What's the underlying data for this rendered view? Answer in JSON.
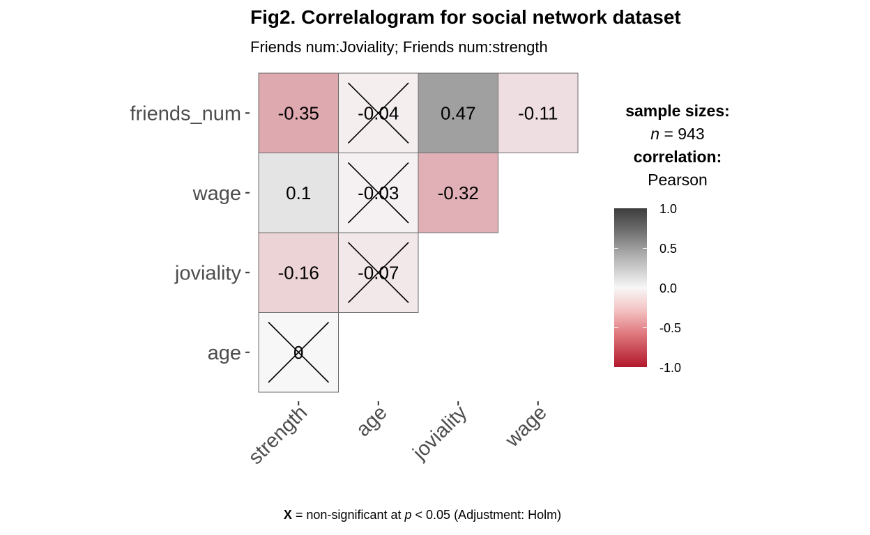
{
  "title": "Fig2. Correlalogram for social network dataset",
  "subtitle": "Friends num:Joviality; Friends num:strength",
  "caption": {
    "x_mark": "X",
    "text_before_p": " = non-significant at ",
    "p": "p",
    "text_after_p": " < 0.05 (Adjustment: Holm)"
  },
  "legend": {
    "sample_sizes_label": "sample sizes:",
    "n_symbol": "n",
    "n_value": " = 943",
    "correlation_label": "correlation:",
    "correlation_method": "Pearson",
    "ticks": [
      "1.0",
      "0.5",
      "0.0",
      "-0.5",
      "-1.0"
    ],
    "colors": {
      "high": "#3d3d3d",
      "mid": "#f7f7f7",
      "low": "#b2182b"
    }
  },
  "chart_data": {
    "type": "heatmap",
    "title": "Fig2. Correlalogram for social network dataset",
    "subtitle": "Friends num:Joviality; Friends num:strength",
    "x_categories": [
      "strength",
      "age",
      "joviality",
      "wage"
    ],
    "y_categories": [
      "friends_num",
      "wage",
      "joviality",
      "age"
    ],
    "cells": [
      {
        "x": "strength",
        "y": "friends_num",
        "value": -0.35,
        "label": "-0.35",
        "significant": true
      },
      {
        "x": "age",
        "y": "friends_num",
        "value": -0.04,
        "label": "-0.04",
        "significant": false
      },
      {
        "x": "joviality",
        "y": "friends_num",
        "value": 0.47,
        "label": "0.47",
        "significant": true
      },
      {
        "x": "wage",
        "y": "friends_num",
        "value": -0.11,
        "label": "-0.11",
        "significant": true
      },
      {
        "x": "strength",
        "y": "wage",
        "value": 0.1,
        "label": "0.1",
        "significant": true
      },
      {
        "x": "age",
        "y": "wage",
        "value": -0.03,
        "label": "-0.03",
        "significant": false
      },
      {
        "x": "joviality",
        "y": "wage",
        "value": -0.32,
        "label": "-0.32",
        "significant": true
      },
      {
        "x": "strength",
        "y": "joviality",
        "value": -0.16,
        "label": "-0.16",
        "significant": true
      },
      {
        "x": "age",
        "y": "joviality",
        "value": -0.07,
        "label": "-0.07",
        "significant": false
      },
      {
        "x": "strength",
        "y": "age",
        "value": 0,
        "label": "0",
        "significant": false
      }
    ],
    "color_scale": {
      "min": -1.0,
      "max": 1.0,
      "low": "#b2182b",
      "mid": "#f7f7f7",
      "high": "#3d3d3d"
    },
    "sample_size": 943,
    "method": "Pearson",
    "legend_position": "right"
  }
}
